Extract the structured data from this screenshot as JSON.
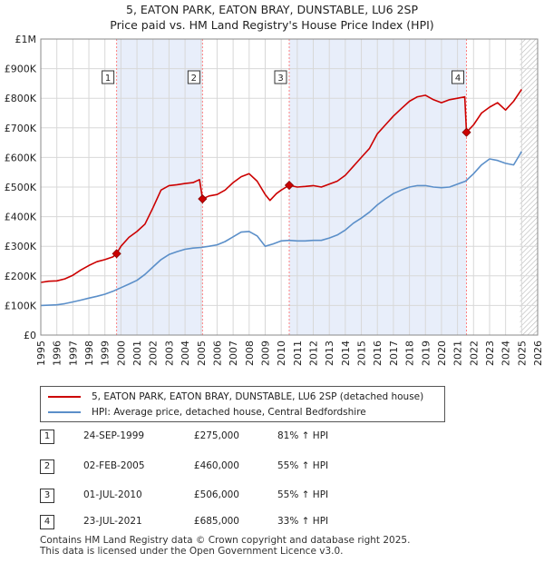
{
  "title_line1": "5, EATON PARK, EATON BRAY, DUNSTABLE, LU6 2SP",
  "title_line2": "Price paid vs. HM Land Registry's House Price Index (HPI)",
  "colors": {
    "property": "#cc0000",
    "hpi": "#5b8fc9",
    "shade": "#e8eefa",
    "grid": "#d8d8d8",
    "marker_line": "#ff8080"
  },
  "legend": {
    "property": "5, EATON PARK, EATON BRAY, DUNSTABLE, LU6 2SP (detached house)",
    "hpi": "HPI: Average price, detached house, Central Bedfordshire"
  },
  "sales": [
    {
      "num": "1",
      "date": "24-SEP-1999",
      "price": "£275,000",
      "hpi": "81% ↑ HPI"
    },
    {
      "num": "2",
      "date": "02-FEB-2005",
      "price": "£460,000",
      "hpi": "55% ↑ HPI"
    },
    {
      "num": "3",
      "date": "01-JUL-2010",
      "price": "£506,000",
      "hpi": "55% ↑ HPI"
    },
    {
      "num": "4",
      "date": "23-JUL-2021",
      "price": "£685,000",
      "hpi": "33% ↑ HPI"
    }
  ],
  "footer_line1": "Contains HM Land Registry data © Crown copyright and database right 2025.",
  "footer_line2": "This data is licensed under the Open Government Licence v3.0.",
  "chart_data": {
    "type": "line",
    "xlabel": "",
    "ylabel": "",
    "xlim": [
      1995,
      2026
    ],
    "ylim": [
      0,
      1000000
    ],
    "y_ticks": [
      {
        "value": 0,
        "label": "£0"
      },
      {
        "value": 100000,
        "label": "£100K"
      },
      {
        "value": 200000,
        "label": "£200K"
      },
      {
        "value": 300000,
        "label": "£300K"
      },
      {
        "value": 400000,
        "label": "£400K"
      },
      {
        "value": 500000,
        "label": "£500K"
      },
      {
        "value": 600000,
        "label": "£600K"
      },
      {
        "value": 700000,
        "label": "£700K"
      },
      {
        "value": 800000,
        "label": "£800K"
      },
      {
        "value": 900000,
        "label": "£900K"
      },
      {
        "value": 1000000,
        "label": "£1M"
      }
    ],
    "x_ticks": [
      "1995",
      "1996",
      "1997",
      "1998",
      "1999",
      "2000",
      "2001",
      "2002",
      "2003",
      "2004",
      "2005",
      "2006",
      "2007",
      "2008",
      "2009",
      "2010",
      "2011",
      "2012",
      "2013",
      "2014",
      "2015",
      "2016",
      "2017",
      "2018",
      "2019",
      "2020",
      "2021",
      "2022",
      "2023",
      "2024",
      "2025",
      "2026"
    ],
    "shaded_periods": [
      [
        1999.73,
        2005.09
      ],
      [
        2010.5,
        2021.56
      ]
    ],
    "hatched_from": 2024.9,
    "series": [
      {
        "name": "5, EATON PARK, EATON BRAY, DUNSTABLE, LU6 2SP (detached house)",
        "x": [
          1995,
          1995.5,
          1996,
          1996.5,
          1997,
          1997.5,
          1998,
          1998.5,
          1999,
          1999.5,
          1999.73,
          2000,
          2000.5,
          2001,
          2001.5,
          2002,
          2002.5,
          2003,
          2003.5,
          2004,
          2004.5,
          2004.9,
          2005.09,
          2005.5,
          2006,
          2006.5,
          2007,
          2007.5,
          2008,
          2008.5,
          2009,
          2009.3,
          2009.7,
          2010,
          2010.5,
          2011,
          2011.5,
          2012,
          2012.5,
          2013,
          2013.5,
          2014,
          2014.5,
          2015,
          2015.5,
          2016,
          2016.5,
          2017,
          2017.5,
          2018,
          2018.5,
          2019,
          2019.5,
          2020,
          2020.5,
          2021,
          2021.45,
          2021.56,
          2022,
          2022.5,
          2023,
          2023.5,
          2024,
          2024.5,
          2025
        ],
        "values": [
          178000,
          182000,
          183000,
          190000,
          202000,
          220000,
          235000,
          248000,
          255000,
          264000,
          275000,
          300000,
          330000,
          350000,
          375000,
          430000,
          490000,
          505000,
          508000,
          512000,
          515000,
          525000,
          460000,
          470000,
          475000,
          490000,
          515000,
          535000,
          545000,
          520000,
          475000,
          455000,
          478000,
          490000,
          506000,
          500000,
          502000,
          505000,
          500000,
          510000,
          520000,
          540000,
          570000,
          600000,
          630000,
          680000,
          710000,
          740000,
          765000,
          790000,
          805000,
          810000,
          795000,
          785000,
          795000,
          800000,
          805000,
          685000,
          710000,
          750000,
          770000,
          785000,
          760000,
          790000,
          830000
        ]
      },
      {
        "name": "HPI: Average price, detached house, Central Bedfordshire",
        "x": [
          1995,
          1995.5,
          1996,
          1996.5,
          1997,
          1997.5,
          1998,
          1998.5,
          1999,
          1999.5,
          2000,
          2000.5,
          2001,
          2001.5,
          2002,
          2002.5,
          2003,
          2003.5,
          2004,
          2004.5,
          2005,
          2005.5,
          2006,
          2006.5,
          2007,
          2007.5,
          2008,
          2008.5,
          2009,
          2009.5,
          2010,
          2010.5,
          2011,
          2011.5,
          2012,
          2012.5,
          2013,
          2013.5,
          2014,
          2014.5,
          2015,
          2015.5,
          2016,
          2016.5,
          2017,
          2017.5,
          2018,
          2018.5,
          2019,
          2019.5,
          2020,
          2020.5,
          2021,
          2021.5,
          2022,
          2022.5,
          2023,
          2023.5,
          2024,
          2024.5,
          2025
        ],
        "values": [
          100000,
          101000,
          102000,
          106000,
          112000,
          118000,
          125000,
          131000,
          138000,
          148000,
          160000,
          172000,
          185000,
          205000,
          230000,
          255000,
          272000,
          282000,
          290000,
          294000,
          296000,
          300000,
          305000,
          316000,
          332000,
          348000,
          350000,
          335000,
          300000,
          308000,
          318000,
          320000,
          318000,
          318000,
          320000,
          320000,
          328000,
          338000,
          355000,
          378000,
          395000,
          415000,
          440000,
          460000,
          478000,
          490000,
          500000,
          505000,
          505000,
          500000,
          498000,
          500000,
          510000,
          520000,
          545000,
          575000,
          595000,
          590000,
          580000,
          575000,
          620000
        ]
      }
    ],
    "markers": [
      {
        "label": "1",
        "x": 1999.73,
        "value": 275000
      },
      {
        "label": "2",
        "x": 2005.09,
        "value": 460000
      },
      {
        "label": "3",
        "x": 2010.5,
        "value": 506000
      },
      {
        "label": "4",
        "x": 2021.56,
        "value": 685000
      }
    ]
  }
}
